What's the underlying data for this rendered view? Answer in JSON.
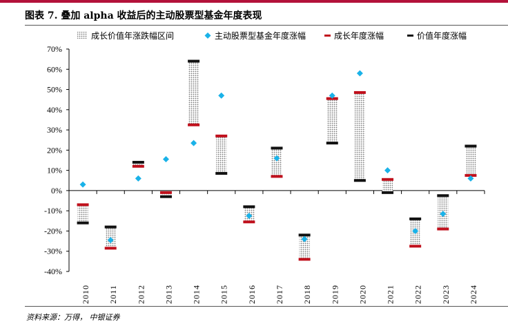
{
  "header": {
    "title": "图表 7. 叠加 alpha 收益后的主动股票型基金年度表现",
    "source": "资料来源：万得， 中银证券"
  },
  "colors": {
    "brand": "#b3123a",
    "growth": "#c0101c",
    "value": "#111111",
    "active": "#1ab2e8",
    "range_fill": "#999999"
  },
  "chart_data": {
    "type": "range_bar",
    "title": "叠加 alpha 收益后的主动股票型基金年度表现",
    "xlabel": "",
    "ylabel": "",
    "ylim": [
      -40,
      70
    ],
    "yticks": [
      -40,
      -30,
      -20,
      -10,
      0,
      10,
      20,
      30,
      40,
      50,
      60,
      70
    ],
    "y_format": "percent",
    "categories": [
      "2010",
      "2011",
      "2012",
      "2013",
      "2014",
      "2015",
      "2016",
      "2017",
      "2018",
      "2019",
      "2020",
      "2021",
      "2022",
      "2023",
      "2024"
    ],
    "legend": [
      "成长价值年涨跌幅区间",
      "主动股票型基金年度涨幅",
      "成长年度涨幅",
      "价值年度涨幅"
    ],
    "series": [
      {
        "name": "主动股票型基金年度涨幅",
        "marker": "diamond",
        "values": [
          3,
          -24.5,
          6,
          15.5,
          23.5,
          47,
          -12.5,
          16,
          -24,
          47,
          58,
          10,
          -20,
          -11.5,
          6
        ]
      },
      {
        "name": "成长年度涨幅",
        "marker": "dash",
        "values": [
          -7,
          -28.5,
          12,
          -1,
          32.5,
          27,
          -15.5,
          7,
          -34,
          45.5,
          48.5,
          5.5,
          -27.5,
          -19,
          7.5
        ]
      },
      {
        "name": "价值年度涨幅",
        "marker": "dash",
        "values": [
          -16,
          -18,
          14,
          -3,
          64,
          8.5,
          -8,
          21,
          -22,
          23.5,
          5,
          -1,
          -14,
          -2.5,
          22
        ]
      }
    ]
  }
}
